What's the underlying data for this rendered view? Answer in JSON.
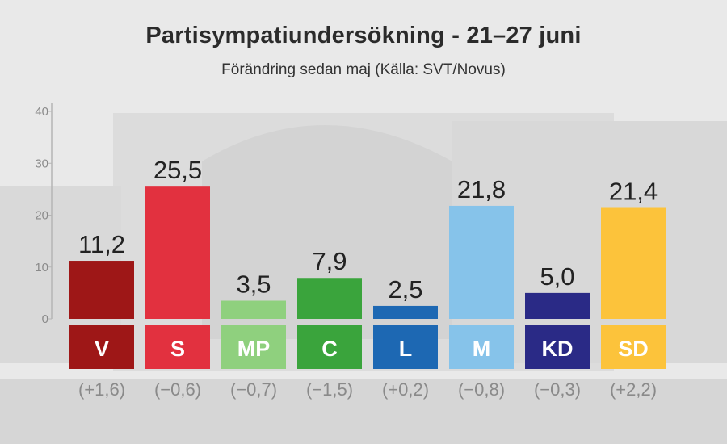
{
  "title": "Partisympatiundersökning - 21–27 juni",
  "subtitle": "Förändring sedan maj (Källa: SVT/Novus)",
  "chart_data": {
    "type": "bar",
    "title": "Partisympatiundersökning - 21–27 juni",
    "subtitle": "Förändring sedan maj (Källa: SVT/Novus)",
    "categories": [
      "V",
      "S",
      "MP",
      "C",
      "L",
      "M",
      "KD",
      "SD"
    ],
    "values": [
      11.2,
      25.5,
      3.5,
      7.9,
      2.5,
      21.8,
      5.0,
      21.4
    ],
    "value_labels": [
      "11,2",
      "25,5",
      "3,5",
      "7,9",
      "2,5",
      "21,8",
      "5,0",
      "21,4"
    ],
    "changes": [
      "(+1,6)",
      "(−0,6)",
      "(−0,7)",
      "(−1,5)",
      "(+0,2)",
      "(−0,8)",
      "(−0,3)",
      "(+2,2)"
    ],
    "colors": [
      "#9e1717",
      "#e2313f",
      "#8fd07e",
      "#3aa43c",
      "#1d68b3",
      "#86c3ea",
      "#2a2a86",
      "#fcc33b"
    ],
    "ylim": [
      0,
      40
    ],
    "yticks": [
      "0",
      "10",
      "20",
      "30",
      "40"
    ],
    "xlabel": "",
    "ylabel": "",
    "grid": false,
    "legend": "none"
  }
}
